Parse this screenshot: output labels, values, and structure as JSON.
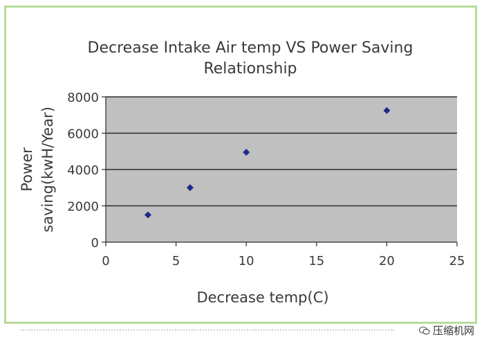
{
  "chart_data": {
    "type": "scatter",
    "title_lines": [
      "Decrease Intake Air temp VS Power Saving",
      "Relationship"
    ],
    "xlabel": "Decrease temp(C)",
    "ylabel_lines": [
      "Power",
      "saving(kwH/Year)"
    ],
    "xlim": [
      0,
      25
    ],
    "ylim": [
      0,
      8000
    ],
    "x_ticks": [
      0,
      5,
      10,
      15,
      20,
      25
    ],
    "y_ticks": [
      0,
      2000,
      4000,
      6000,
      8000
    ],
    "points": [
      {
        "x": 3,
        "y": 1500
      },
      {
        "x": 6,
        "y": 3000
      },
      {
        "x": 10,
        "y": 4950
      },
      {
        "x": 20,
        "y": 7250
      }
    ],
    "grid": "horizontal",
    "plot_background": "#c0c0c0",
    "marker_color": "#1f2a8a",
    "frame_color": "#b7dc9a"
  },
  "watermark": {
    "text": "压缩机网",
    "icon": "wechat-icon"
  }
}
